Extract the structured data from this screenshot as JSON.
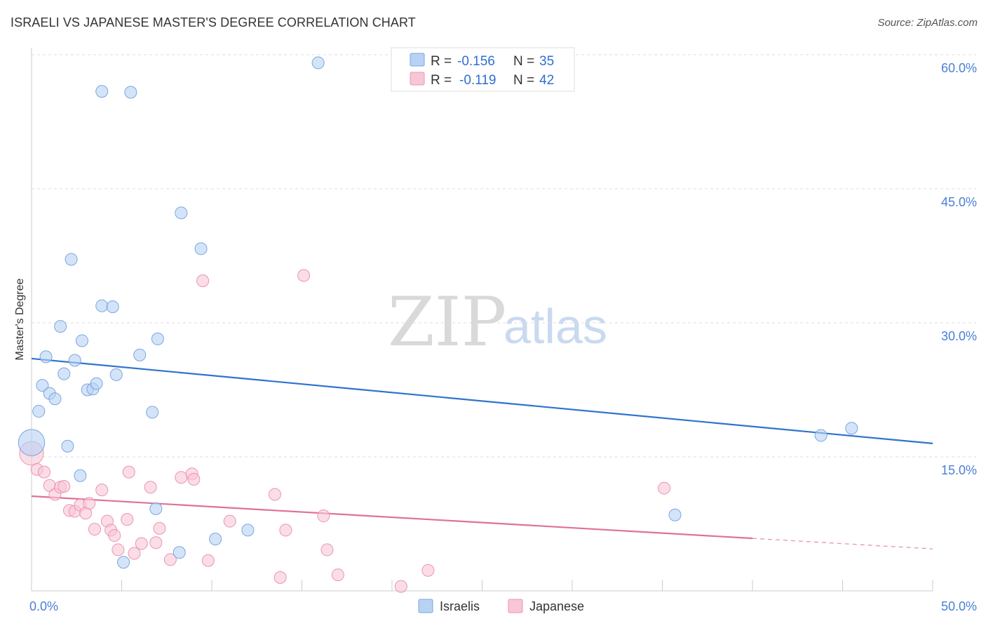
{
  "header": {
    "title": "ISRAELI VS JAPANESE MASTER'S DEGREE CORRELATION CHART",
    "source": "Source: ZipAtlas.com"
  },
  "watermark": {
    "part1": "ZIP",
    "part2": "atlas"
  },
  "legend": {
    "israelis": {
      "r_label": "R =",
      "r_value": "-0.156",
      "n_label": "N =",
      "n_value": "35"
    },
    "japanese": {
      "r_label": "R =",
      "r_value": "-0.119",
      "n_label": "N =",
      "n_value": "42"
    }
  },
  "bottom_legend": {
    "israelis": "Israelis",
    "japanese": "Japanese"
  },
  "colors": {
    "israelis_fill": "#b8d2f4",
    "israelis_stroke": "#7aa6e0",
    "israelis_line": "#2f74cc",
    "japanese_fill": "#f8c6d6",
    "japanese_stroke": "#ec94b2",
    "japanese_line": "#e0709a",
    "tick_text": "#4a7fd4",
    "grid": "#dddddd"
  },
  "chart_data": {
    "type": "scatter",
    "title": "ISRAELI VS JAPANESE MASTER'S DEGREE CORRELATION CHART",
    "xlabel": "",
    "ylabel": "Master's Degree",
    "xlim": [
      0,
      50
    ],
    "ylim": [
      0,
      62
    ],
    "x_tick_labels": [
      {
        "value": 0,
        "label": "0.0%"
      },
      {
        "value": 50,
        "label": "50.0%"
      }
    ],
    "y_tick_labels": [
      {
        "value": 15,
        "label": "15.0%"
      },
      {
        "value": 30,
        "label": "30.0%"
      },
      {
        "value": 45,
        "label": "45.0%"
      },
      {
        "value": 60,
        "label": "60.0%"
      }
    ],
    "series": [
      {
        "name": "Israelis",
        "points": [
          [
            0.0,
            16.6,
            2.2
          ],
          [
            0.4,
            20.1,
            1
          ],
          [
            0.6,
            23.0,
            1
          ],
          [
            0.8,
            26.2,
            1
          ],
          [
            1.0,
            22.1,
            1
          ],
          [
            1.3,
            21.5,
            1
          ],
          [
            1.6,
            29.6,
            1
          ],
          [
            1.8,
            24.3,
            1
          ],
          [
            2.0,
            16.2,
            1
          ],
          [
            2.2,
            37.1,
            1
          ],
          [
            2.4,
            25.8,
            1
          ],
          [
            2.7,
            12.9,
            1
          ],
          [
            2.8,
            28.0,
            1
          ],
          [
            3.1,
            22.5,
            1
          ],
          [
            3.4,
            22.6,
            1
          ],
          [
            3.6,
            23.2,
            1
          ],
          [
            3.9,
            55.9,
            1
          ],
          [
            3.9,
            31.9,
            1
          ],
          [
            4.5,
            31.8,
            1
          ],
          [
            4.7,
            24.2,
            1
          ],
          [
            5.1,
            3.2,
            1
          ],
          [
            5.5,
            55.8,
            1
          ],
          [
            6.0,
            26.4,
            1
          ],
          [
            6.7,
            20.0,
            1
          ],
          [
            6.9,
            9.2,
            1
          ],
          [
            7.0,
            28.2,
            1
          ],
          [
            8.2,
            4.3,
            1
          ],
          [
            8.3,
            42.3,
            1
          ],
          [
            9.4,
            38.3,
            1
          ],
          [
            10.2,
            5.8,
            1
          ],
          [
            12.0,
            6.8,
            1
          ],
          [
            15.9,
            59.1,
            1
          ],
          [
            35.7,
            8.5,
            1
          ],
          [
            43.8,
            17.4,
            1
          ],
          [
            45.5,
            18.2,
            1
          ]
        ]
      },
      {
        "name": "Japanese",
        "points": [
          [
            0.0,
            15.4,
            2.0
          ],
          [
            0.3,
            13.6,
            1
          ],
          [
            0.7,
            13.3,
            1
          ],
          [
            1.0,
            11.8,
            1
          ],
          [
            1.3,
            10.8,
            1
          ],
          [
            1.6,
            11.6,
            1
          ],
          [
            1.8,
            11.7,
            1
          ],
          [
            2.1,
            9.0,
            1
          ],
          [
            2.4,
            8.9,
            1
          ],
          [
            2.7,
            9.6,
            1
          ],
          [
            3.0,
            8.7,
            1
          ],
          [
            3.2,
            9.8,
            1
          ],
          [
            3.5,
            6.9,
            1
          ],
          [
            3.9,
            11.3,
            1
          ],
          [
            4.2,
            7.8,
            1
          ],
          [
            4.4,
            6.8,
            1
          ],
          [
            4.6,
            6.2,
            1
          ],
          [
            4.8,
            4.6,
            1
          ],
          [
            5.3,
            8.0,
            1
          ],
          [
            5.4,
            13.3,
            1
          ],
          [
            5.7,
            4.2,
            1
          ],
          [
            6.1,
            5.3,
            1
          ],
          [
            6.6,
            11.6,
            1
          ],
          [
            6.9,
            5.4,
            1
          ],
          [
            7.1,
            7.0,
            1
          ],
          [
            7.7,
            3.5,
            1
          ],
          [
            8.3,
            12.7,
            1
          ],
          [
            8.9,
            13.1,
            1
          ],
          [
            9.0,
            12.5,
            1
          ],
          [
            9.5,
            34.7,
            1
          ],
          [
            9.8,
            3.4,
            1
          ],
          [
            11.0,
            7.8,
            1
          ],
          [
            13.5,
            10.8,
            1
          ],
          [
            13.8,
            1.5,
            1
          ],
          [
            14.1,
            6.8,
            1
          ],
          [
            15.1,
            35.3,
            1
          ],
          [
            16.2,
            8.4,
            1
          ],
          [
            16.4,
            4.6,
            1
          ],
          [
            17.0,
            1.8,
            1
          ],
          [
            20.5,
            0.5,
            1
          ],
          [
            22.0,
            2.3,
            1
          ],
          [
            35.1,
            11.5,
            1
          ]
        ]
      }
    ],
    "trendlines": [
      {
        "series": "Israelis",
        "x0": 0,
        "y0": 26.0,
        "x1": 50,
        "y1": 16.5,
        "dashed_from": null
      },
      {
        "series": "Japanese",
        "x0": 0,
        "y0": 10.6,
        "x1": 50,
        "y1": 4.7,
        "dashed_from": 40
      }
    ]
  }
}
